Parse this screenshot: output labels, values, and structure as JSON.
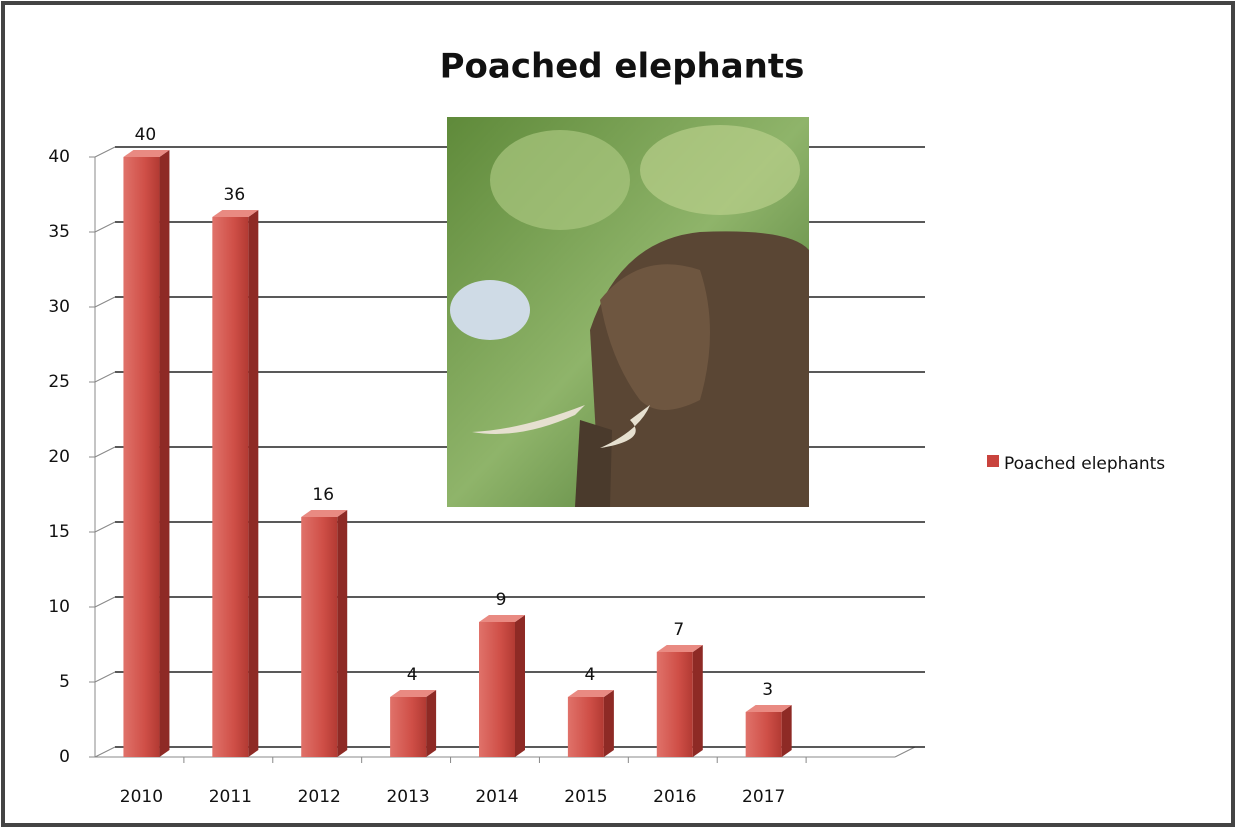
{
  "chart_data": {
    "type": "bar",
    "title": "Poached elephants",
    "categories": [
      "2010",
      "2011",
      "2012",
      "2013",
      "2014",
      "2015",
      "2016",
      "2017"
    ],
    "series": [
      {
        "name": "Poached elephants",
        "color": "#c9433d",
        "values": [
          40,
          36,
          16,
          4,
          9,
          4,
          7,
          3
        ]
      }
    ],
    "ylim": [
      0,
      40
    ],
    "yticks": [
      0,
      5,
      10,
      15,
      20,
      25,
      30,
      35,
      40
    ],
    "grid": true,
    "legend": "right"
  }
}
